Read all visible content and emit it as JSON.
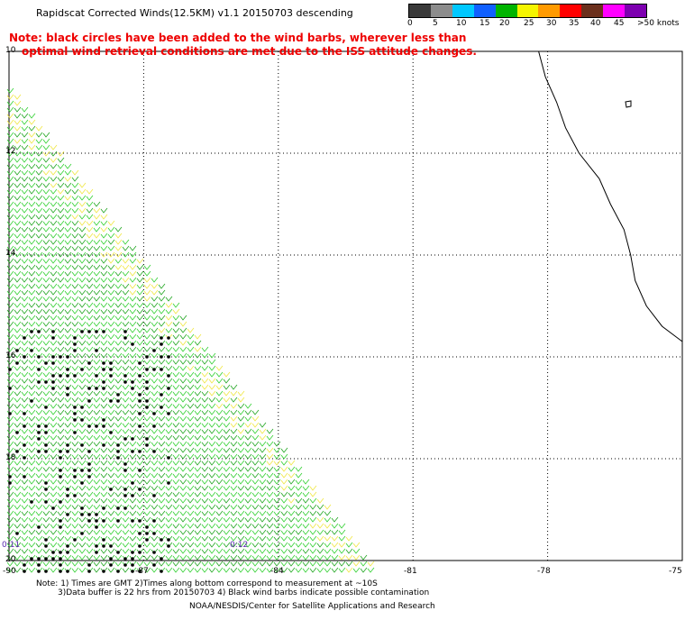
{
  "title": "Rapidscat Corrected Winds(12.5KM) v1.1 20150703 descending",
  "note_line1": "Note: black circles have been added to the wind barbs, wherever less than",
  "note_line2": "optimal wind retrieval conditions are met due to the ISS attitude changes.",
  "legend": {
    "labels": [
      "0",
      "5",
      "10",
      "15",
      "20",
      "25",
      "30",
      "35",
      "40",
      "45",
      ">50 knots"
    ],
    "colors": [
      "#3a3a3a",
      "#8c8c8c",
      "#00c8ff",
      "#1060ff",
      "#00b400",
      "#f5f500",
      "#ff9a00",
      "#ff0000",
      "#6b2f1c",
      "#ff00ff",
      "#7d00b0"
    ]
  },
  "axes": {
    "lon_labels": [
      "-90",
      "-87",
      "-84",
      "-81",
      "-78",
      "-75"
    ],
    "lat_labels": [
      "10",
      "12",
      "14",
      "16",
      "18",
      "20"
    ]
  },
  "time_marks": [
    "0:11",
    "0:12"
  ],
  "footer": {
    "line1": "Note: 1) Times are GMT 2)Times along bottom correspond to measurement at ~10S",
    "line2": "3)Data buffer is 22 hrs from 20150703 4) Black wind barbs indicate possible contamination",
    "line3": "NOAA/NESDIS/Center for Satellite Applications and Research"
  },
  "map_data": {
    "lon_range": [
      -90,
      -75
    ],
    "lat_range": [
      -10,
      -20
    ],
    "wind_speed_min": 15,
    "wind_speed_max": 25,
    "coastline": [
      [
        -78.2,
        -10.0
      ],
      [
        -78.05,
        -10.5
      ],
      [
        -77.8,
        -11.0
      ],
      [
        -77.6,
        -11.5
      ],
      [
        -77.3,
        -12.0
      ],
      [
        -76.85,
        -12.5
      ],
      [
        -76.6,
        -13.0
      ],
      [
        -76.3,
        -13.5
      ],
      [
        -76.15,
        -14.0
      ],
      [
        -76.05,
        -14.5
      ],
      [
        -75.8,
        -15.0
      ],
      [
        -75.45,
        -15.4
      ],
      [
        -75.0,
        -15.7
      ]
    ]
  }
}
